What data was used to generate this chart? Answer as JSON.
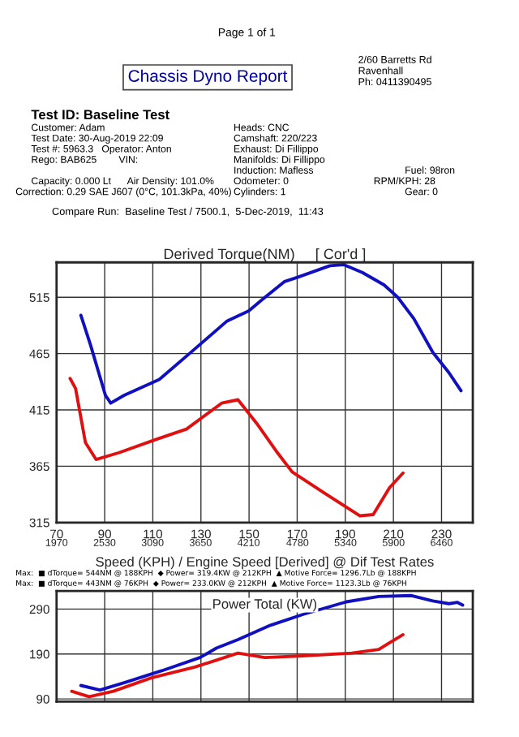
{
  "chart_data": [
    {
      "type": "line",
      "title": "Derived Torque(NM)     [ Cor'd ]",
      "xlabel": "Speed (KPH) / Engine Speed [Derived] @ Dif Test Rates",
      "xlim": [
        70,
        243
      ],
      "ylim": [
        315,
        546
      ],
      "xticks": [
        70,
        90,
        110,
        130,
        150,
        170,
        190,
        210,
        230
      ],
      "x2lim": [
        1970,
        6825
      ],
      "x2ticks": [
        1970,
        2530,
        3090,
        3650,
        4210,
        4780,
        5340,
        5900,
        6460
      ],
      "yticks": [
        315,
        365,
        415,
        465,
        515
      ],
      "grid": true,
      "legend": false,
      "marker": "none",
      "line_style": "solid",
      "series": [
        {
          "color": "#1010c0",
          "x": [
            80.1,
            84.2,
            90.3,
            92.5,
            98.1,
            112.7,
            126.3,
            140.9,
            149.9,
            155.5,
            164.8,
            170.4,
            183.6,
            189.3,
            197.1,
            206.1,
            211.8,
            218.5,
            226.4,
            233.1,
            238.1
          ],
          "values": [
            499,
            472,
            428,
            421,
            428,
            442,
            467,
            494,
            503,
            513,
            529,
            533,
            543,
            544,
            537,
            526,
            515,
            496,
            466,
            448,
            432
          ]
        },
        {
          "color": "#e01010",
          "x": [
            75.6,
            77.9,
            82,
            86.4,
            95.9,
            111.6,
            124,
            138.6,
            145.4,
            153.2,
            161.1,
            167.9,
            181.4,
            196,
            201.6,
            208.4,
            214
          ],
          "values": [
            443,
            434,
            386,
            371,
            377,
            389,
            398,
            421,
            424,
            403,
            379,
            360,
            341,
            321,
            322,
            346,
            359
          ]
        }
      ],
      "annotations": [
        "Page 1 of 1",
        "Chassis Dyno Report",
        "2/60 Barretts Rd",
        "Ravenhall",
        "Ph: 0411390495",
        "Test ID: Baseline Test",
        "Customer: Adam",
        "Heads: CNC",
        "Test Date: 30-Aug-2019 22:09",
        "Camshaft: 220/223",
        "Test #: 5963.3   Operator: Anton",
        "Exhaust: Di Fillippo",
        "Rego: BAB625        VIN:",
        "Manifolds: Di Fillippo",
        "Induction: Mafless",
        "Fuel: 98ron",
        "Capacity: 0.000 Lt      Air Density: 101.0%",
        "Odometer: 0",
        "RPM/KPH: 28",
        "Correction: 0.29 SAE J607 (0°C, 101.3kPa, 40%)",
        "Cylinders: 1",
        "Gear: 0",
        "Compare Run:  Baseline Test / 7500.1,  5-Dec-2019,  11:43",
        "Max:  ■ dTorque= 544NM @ 188KPH  ◆ Power= 319.4KW @ 212KPH  ▲ Motive Force= 1296.7Lb @ 188KPH",
        "Max:  ■ dTorque= 443NM @ 76KPH  ◆ Power= 233.0KW @ 212KPH  ▲ Motive Force= 1123.3Lb @ 76KPH"
      ]
    },
    {
      "type": "line",
      "title": "Power Total (KW)",
      "xlim": [
        70,
        243
      ],
      "ylim": [
        84,
        330
      ],
      "xticks": [
        70,
        90,
        110,
        130,
        150,
        170,
        190,
        210,
        230
      ],
      "yticks": [
        90,
        190,
        290
      ],
      "tick_labels": "y",
      "grid": true,
      "legend": false,
      "marker": "none",
      "line_style": "solid",
      "series": [
        {
          "color": "#1010c0",
          "x": [
            80.1,
            88,
            98.1,
            113.9,
            129.6,
            136.4,
            145.4,
            158.9,
            172.4,
            190.4,
            203.9,
            217.4,
            226.4,
            233.1,
            236.5,
            238.8
          ],
          "values": [
            120,
            110,
            126,
            153,
            182,
            203,
            222,
            254,
            278,
            306,
            318,
            320,
            308,
            302,
            305,
            299
          ]
        },
        {
          "color": "#e01010",
          "x": [
            76.3,
            83.5,
            93.6,
            109.4,
            127.4,
            136.4,
            145.4,
            156.6,
            172.4,
            192.7,
            203.9,
            208.4,
            214
          ],
          "values": [
            107,
            95,
            107,
            137,
            161,
            176,
            192,
            182,
            186,
            192,
            200,
            215,
            233
          ]
        }
      ]
    }
  ]
}
